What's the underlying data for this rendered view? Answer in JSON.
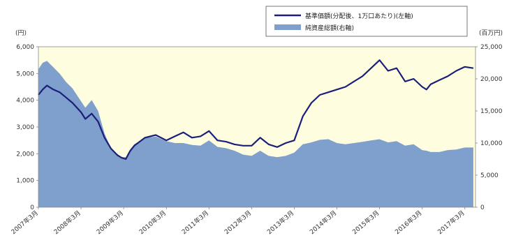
{
  "chart_data": {
    "type": "line",
    "y_left_unit": "(円)",
    "y_right_unit": "(百万円)",
    "y_left_ticks": [
      "0",
      "1,000",
      "2,000",
      "3,000",
      "4,000",
      "5,000",
      "6,000"
    ],
    "y_right_ticks": [
      "0",
      "5,000",
      "10,000",
      "15,000",
      "20,000",
      "25,000"
    ],
    "ylim_left": [
      0,
      6000
    ],
    "ylim_right": [
      0,
      25000
    ],
    "x_tick_labels": [
      "2007年3月",
      "2008年3月",
      "2009年3月",
      "2010年3月",
      "2011年3月",
      "2012年3月",
      "2013年3月",
      "2014年3月",
      "2015年3月",
      "2016年3月",
      "2017年3月"
    ],
    "legend": "top-right",
    "plot_background": "#FFFDE0",
    "series": [
      {
        "name": "基準価額(分配後、1万口あたり)(左軸)",
        "axis": "left",
        "kind": "line",
        "color": "#1A1F7A",
        "x": [
          0,
          0.1,
          0.2,
          0.35,
          0.5,
          0.65,
          0.8,
          1.0,
          1.1,
          1.25,
          1.4,
          1.55,
          1.7,
          1.85,
          1.95,
          2.05,
          2.15,
          2.25,
          2.5,
          2.75,
          3.0,
          3.2,
          3.4,
          3.6,
          3.8,
          4.0,
          4.2,
          4.4,
          4.6,
          4.8,
          5.0,
          5.2,
          5.4,
          5.6,
          5.8,
          6.0,
          6.2,
          6.4,
          6.6,
          6.8,
          7.0,
          7.2,
          7.4,
          7.6,
          7.8,
          8.0,
          8.2,
          8.4,
          8.6,
          8.8,
          9.0,
          9.1,
          9.2,
          9.4,
          9.6,
          9.8,
          10.0,
          10.2
        ],
        "values": [
          4200,
          4400,
          4550,
          4400,
          4300,
          4100,
          3900,
          3550,
          3300,
          3500,
          3200,
          2600,
          2200,
          1950,
          1850,
          1800,
          2100,
          2300,
          2600,
          2700,
          2500,
          2650,
          2800,
          2600,
          2650,
          2850,
          2500,
          2450,
          2350,
          2300,
          2300,
          2600,
          2350,
          2250,
          2400,
          2500,
          3400,
          3900,
          4200,
          4300,
          4400,
          4500,
          4700,
          4900,
          5200,
          5500,
          5100,
          5200,
          4700,
          4800,
          4500,
          4400,
          4600,
          4750,
          4900,
          5100,
          5250,
          5200
        ]
      },
      {
        "name": "純資産総額(右軸)",
        "axis": "right",
        "kind": "area",
        "color": "#7F9FCC",
        "x": [
          0,
          0.1,
          0.2,
          0.35,
          0.5,
          0.65,
          0.8,
          1.0,
          1.1,
          1.25,
          1.4,
          1.55,
          1.7,
          1.85,
          1.95,
          2.05,
          2.15,
          2.25,
          2.5,
          2.75,
          3.0,
          3.2,
          3.4,
          3.6,
          3.8,
          4.0,
          4.2,
          4.4,
          4.6,
          4.8,
          5.0,
          5.2,
          5.4,
          5.6,
          5.8,
          6.0,
          6.2,
          6.4,
          6.6,
          6.8,
          7.0,
          7.2,
          7.4,
          7.6,
          7.8,
          8.0,
          8.2,
          8.4,
          8.6,
          8.8,
          9.0,
          9.1,
          9.2,
          9.4,
          9.6,
          9.8,
          10.0,
          10.2
        ],
        "values": [
          21500,
          22500,
          22800,
          21800,
          20800,
          19500,
          18500,
          16500,
          15500,
          16700,
          15000,
          11500,
          9200,
          8300,
          7800,
          7800,
          9000,
          9800,
          10800,
          11000,
          10300,
          10000,
          10000,
          9700,
          9600,
          10400,
          9400,
          9200,
          8800,
          8200,
          8000,
          8800,
          8000,
          7800,
          8000,
          8500,
          9800,
          10100,
          10500,
          10600,
          10000,
          9800,
          10000,
          10200,
          10400,
          10600,
          10100,
          10300,
          9600,
          9800,
          8900,
          8800,
          8600,
          8600,
          8900,
          9000,
          9300,
          9300
        ]
      }
    ]
  }
}
